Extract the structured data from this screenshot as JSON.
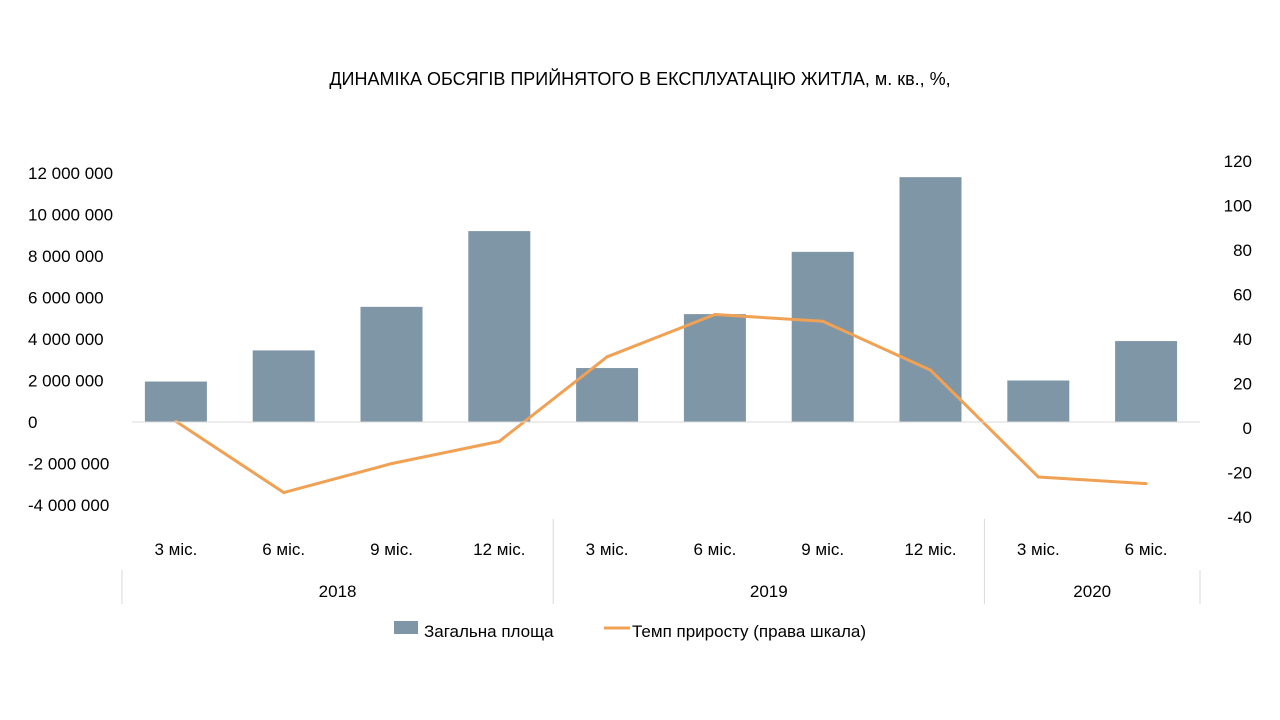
{
  "chart_data": {
    "type": "bar",
    "title": "ДИНАМІКА ОБСЯГІВ ПРИЙНЯТОГО В ЕКСПЛУАТАЦІЮ ЖИТЛА, м. кв., %,",
    "categories": [
      "3 міс.",
      "6 міс.",
      "9 міс.",
      "12 міс.",
      "3 міс.",
      "6 міс.",
      "9 міс.",
      "12 міс.",
      "3 міс.",
      "6 міс."
    ],
    "groups": [
      {
        "label": "2018",
        "count": 4
      },
      {
        "label": "2019",
        "count": 4
      },
      {
        "label": "2020",
        "count": 2
      }
    ],
    "series": [
      {
        "name": "Загальна площа",
        "type": "bar",
        "axis": "left",
        "color": "#7f96a7",
        "values": [
          1950000,
          3450000,
          5550000,
          9200000,
          2600000,
          5200000,
          8200000,
          11800000,
          2000000,
          3900000
        ]
      },
      {
        "name": "Темп приросту (права шкала)",
        "type": "line",
        "axis": "right",
        "color": "#f0a154",
        "values": [
          3,
          -29,
          -16,
          -6,
          32,
          51,
          48,
          26,
          -22,
          -25
        ]
      }
    ],
    "y_left": {
      "min": -4000000,
      "max": 12000000,
      "ticks": [
        12000000,
        10000000,
        8000000,
        6000000,
        4000000,
        2000000,
        0,
        -2000000,
        -4000000
      ],
      "tick_labels": [
        "12 000 000",
        "10 000 000",
        "8 000 000",
        "6 000 000",
        "4 000 000",
        "2 000 000",
        "0",
        "-2 000 000",
        "-4 000 000"
      ]
    },
    "y_right": {
      "min": -40,
      "max": 120,
      "ticks": [
        120,
        100,
        80,
        60,
        40,
        20,
        0,
        -20,
        -40
      ],
      "tick_labels": [
        "120",
        "100",
        "80",
        "60",
        "40",
        "20",
        "0",
        "-20",
        "-40"
      ]
    },
    "grid": false,
    "legend_position": "bottom"
  }
}
